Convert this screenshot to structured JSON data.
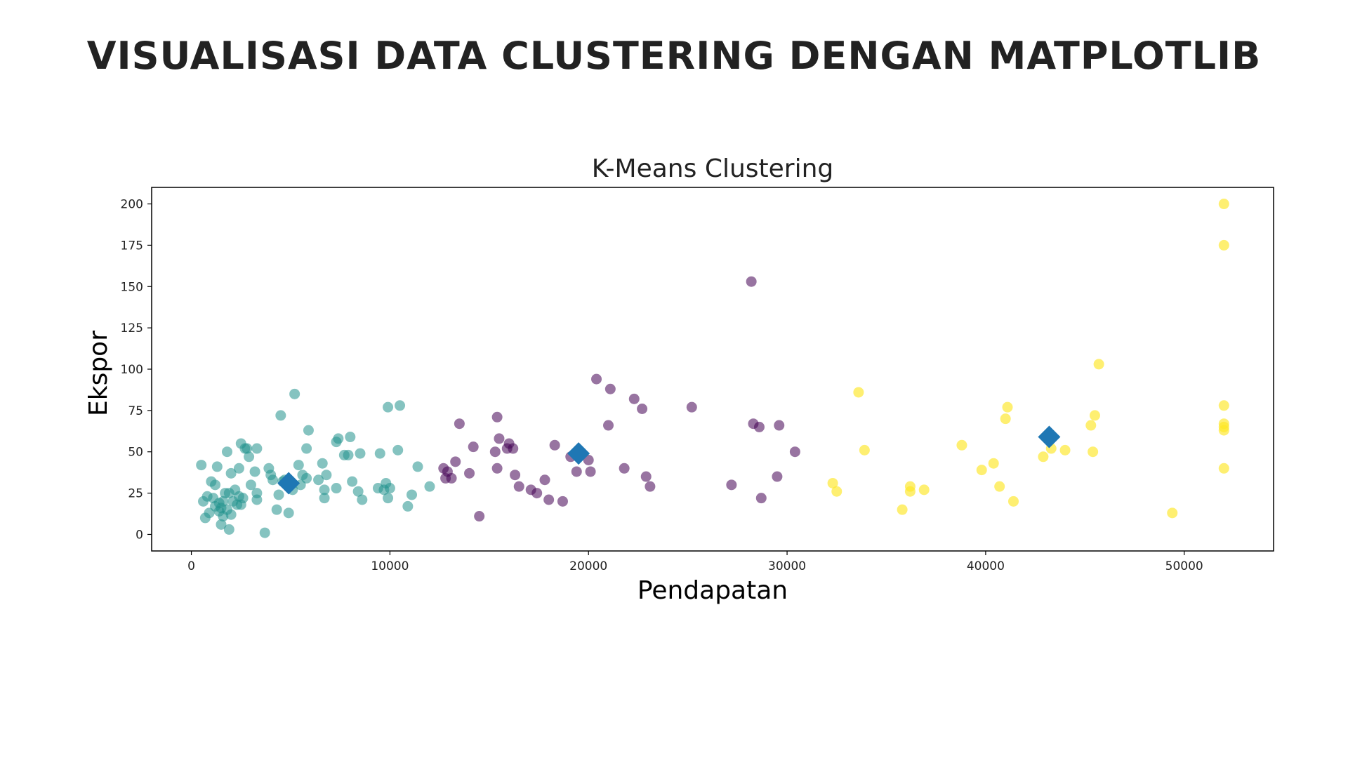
{
  "slide": {
    "title": "VISUALISASI DATA CLUSTERING DENGAN MATPLOTLIB"
  },
  "chart_data": {
    "type": "scatter",
    "title": "K-Means Clustering",
    "xlabel": "Pendapatan",
    "ylabel": "Ekspor",
    "xlim": [
      -2000,
      54500
    ],
    "ylim": [
      -10,
      210
    ],
    "xticks": [
      0,
      10000,
      20000,
      30000,
      40000,
      50000
    ],
    "yticks": [
      0,
      25,
      50,
      75,
      100,
      125,
      150,
      175,
      200
    ],
    "grid": false,
    "legend": "none",
    "series": [
      {
        "color": "#21918c",
        "opacity": 0.55,
        "marker": "circle",
        "points": [
          [
            500,
            42
          ],
          [
            600,
            20
          ],
          [
            700,
            10
          ],
          [
            800,
            23
          ],
          [
            900,
            13
          ],
          [
            1000,
            32
          ],
          [
            1100,
            22
          ],
          [
            1200,
            17
          ],
          [
            1200,
            30
          ],
          [
            1300,
            41
          ],
          [
            1400,
            14
          ],
          [
            1400,
            19
          ],
          [
            1500,
            6
          ],
          [
            1500,
            16
          ],
          [
            1600,
            20
          ],
          [
            1600,
            11
          ],
          [
            1700,
            25
          ],
          [
            1800,
            50
          ],
          [
            1800,
            15
          ],
          [
            1900,
            3
          ],
          [
            1900,
            25
          ],
          [
            2000,
            37
          ],
          [
            2000,
            12
          ],
          [
            2100,
            20
          ],
          [
            2200,
            27
          ],
          [
            2300,
            18
          ],
          [
            2400,
            40
          ],
          [
            2400,
            23
          ],
          [
            2500,
            55
          ],
          [
            2500,
            18
          ],
          [
            2600,
            22
          ],
          [
            2700,
            52
          ],
          [
            2800,
            52
          ],
          [
            2900,
            47
          ],
          [
            3000,
            30
          ],
          [
            3200,
            38
          ],
          [
            3300,
            52
          ],
          [
            3300,
            25
          ],
          [
            3300,
            21
          ],
          [
            3700,
            1
          ],
          [
            3900,
            40
          ],
          [
            4000,
            36
          ],
          [
            4100,
            33
          ],
          [
            4300,
            15
          ],
          [
            4400,
            24
          ],
          [
            4500,
            72
          ],
          [
            4600,
            32
          ],
          [
            4700,
            33
          ],
          [
            4900,
            13
          ],
          [
            5100,
            27
          ],
          [
            5200,
            85
          ],
          [
            5400,
            42
          ],
          [
            5500,
            30
          ],
          [
            5600,
            36
          ],
          [
            5800,
            34
          ],
          [
            5800,
            52
          ],
          [
            5900,
            63
          ],
          [
            6400,
            33
          ],
          [
            6600,
            43
          ],
          [
            6700,
            22
          ],
          [
            6700,
            27
          ],
          [
            6800,
            36
          ],
          [
            7300,
            56
          ],
          [
            7300,
            28
          ],
          [
            7400,
            58
          ],
          [
            7700,
            48
          ],
          [
            7900,
            48
          ],
          [
            8000,
            59
          ],
          [
            8100,
            32
          ],
          [
            8400,
            26
          ],
          [
            8500,
            49
          ],
          [
            8600,
            21
          ],
          [
            9400,
            28
          ],
          [
            9500,
            49
          ],
          [
            9700,
            27
          ],
          [
            9800,
            31
          ],
          [
            9900,
            22
          ],
          [
            9900,
            77
          ],
          [
            10000,
            28
          ],
          [
            10400,
            51
          ],
          [
            10500,
            78
          ],
          [
            10900,
            17
          ],
          [
            11100,
            24
          ],
          [
            11400,
            41
          ],
          [
            12000,
            29
          ]
        ]
      },
      {
        "color": "#440154",
        "opacity": 0.55,
        "marker": "circle",
        "points": [
          [
            12700,
            40
          ],
          [
            12800,
            34
          ],
          [
            12900,
            38
          ],
          [
            13100,
            34
          ],
          [
            13300,
            44
          ],
          [
            13500,
            67
          ],
          [
            14000,
            37
          ],
          [
            14200,
            53
          ],
          [
            14500,
            11
          ],
          [
            15300,
            50
          ],
          [
            15400,
            40
          ],
          [
            15400,
            71
          ],
          [
            15500,
            58
          ],
          [
            15900,
            52
          ],
          [
            16000,
            55
          ],
          [
            16200,
            52
          ],
          [
            16300,
            36
          ],
          [
            16500,
            29
          ],
          [
            17100,
            27
          ],
          [
            17400,
            25
          ],
          [
            17800,
            33
          ],
          [
            18000,
            21
          ],
          [
            18300,
            54
          ],
          [
            18700,
            20
          ],
          [
            19100,
            47
          ],
          [
            19400,
            38
          ],
          [
            20000,
            45
          ],
          [
            20100,
            38
          ],
          [
            20400,
            94
          ],
          [
            21000,
            66
          ],
          [
            21100,
            88
          ],
          [
            21800,
            40
          ],
          [
            22300,
            82
          ],
          [
            22700,
            76
          ],
          [
            22900,
            35
          ],
          [
            23100,
            29
          ],
          [
            25200,
            77
          ],
          [
            27200,
            30
          ],
          [
            28200,
            153
          ],
          [
            28300,
            67
          ],
          [
            28600,
            65
          ],
          [
            28700,
            22
          ],
          [
            29500,
            35
          ],
          [
            29600,
            66
          ],
          [
            30400,
            50
          ]
        ]
      },
      {
        "color": "#fde725",
        "opacity": 0.65,
        "marker": "circle",
        "points": [
          [
            32300,
            31
          ],
          [
            32500,
            26
          ],
          [
            33600,
            86
          ],
          [
            33900,
            51
          ],
          [
            35800,
            15
          ],
          [
            36200,
            29
          ],
          [
            36200,
            26
          ],
          [
            36900,
            27
          ],
          [
            38800,
            54
          ],
          [
            39800,
            39
          ],
          [
            40400,
            43
          ],
          [
            40700,
            29
          ],
          [
            41000,
            70
          ],
          [
            41100,
            77
          ],
          [
            41400,
            20
          ],
          [
            42900,
            47
          ],
          [
            43300,
            52
          ],
          [
            44000,
            51
          ],
          [
            45300,
            66
          ],
          [
            45400,
            50
          ],
          [
            45500,
            72
          ],
          [
            45700,
            103
          ],
          [
            49400,
            13
          ],
          [
            52000,
            200
          ],
          [
            52000,
            175
          ],
          [
            52000,
            78
          ],
          [
            52000,
            67
          ],
          [
            52000,
            65
          ],
          [
            52000,
            63
          ],
          [
            52000,
            40
          ]
        ]
      },
      {
        "color": "#1f77b4",
        "opacity": 1,
        "marker": "diamond",
        "points": [
          [
            4900,
            31
          ],
          [
            19500,
            49
          ],
          [
            43200,
            59
          ]
        ]
      }
    ]
  }
}
